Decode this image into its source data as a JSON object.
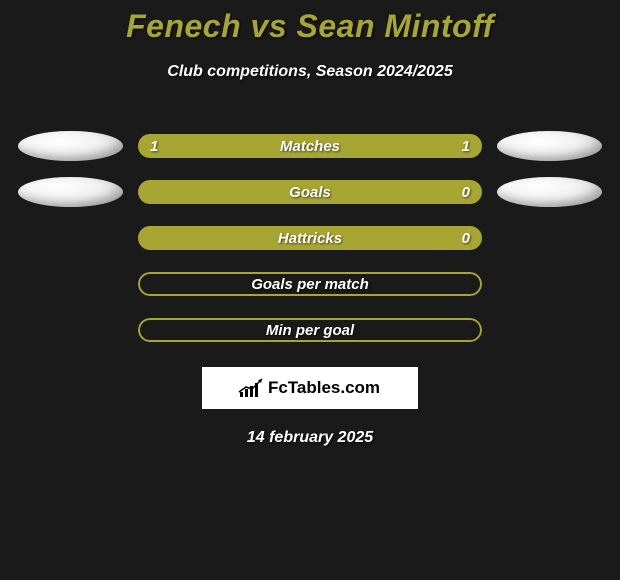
{
  "title": "Fenech vs Sean Mintoff",
  "subtitle": "Club competitions, Season 2024/2025",
  "date": "14 february 2025",
  "logo_text": "FcTables.com",
  "colors": {
    "accent": "#a8a632",
    "background": "#1a1a1a",
    "text": "#ffffff",
    "logo_bg": "#ffffff",
    "logo_text": "#000000"
  },
  "stats": [
    {
      "label": "Matches",
      "left_value": "1",
      "right_value": "1",
      "left_pct": 50,
      "right_pct": 50,
      "show_left_ellipse": true,
      "show_right_ellipse": true,
      "filled": true
    },
    {
      "label": "Goals",
      "left_value": "",
      "right_value": "0",
      "left_pct": 100,
      "right_pct": 0,
      "show_left_ellipse": true,
      "show_right_ellipse": true,
      "filled": true
    },
    {
      "label": "Hattricks",
      "left_value": "",
      "right_value": "0",
      "left_pct": 100,
      "right_pct": 0,
      "show_left_ellipse": false,
      "show_right_ellipse": false,
      "filled": true
    },
    {
      "label": "Goals per match",
      "left_value": "",
      "right_value": "",
      "left_pct": 0,
      "right_pct": 0,
      "show_left_ellipse": false,
      "show_right_ellipse": false,
      "filled": false
    },
    {
      "label": "Min per goal",
      "left_value": "",
      "right_value": "",
      "left_pct": 0,
      "right_pct": 0,
      "show_left_ellipse": false,
      "show_right_ellipse": false,
      "filled": false
    }
  ]
}
